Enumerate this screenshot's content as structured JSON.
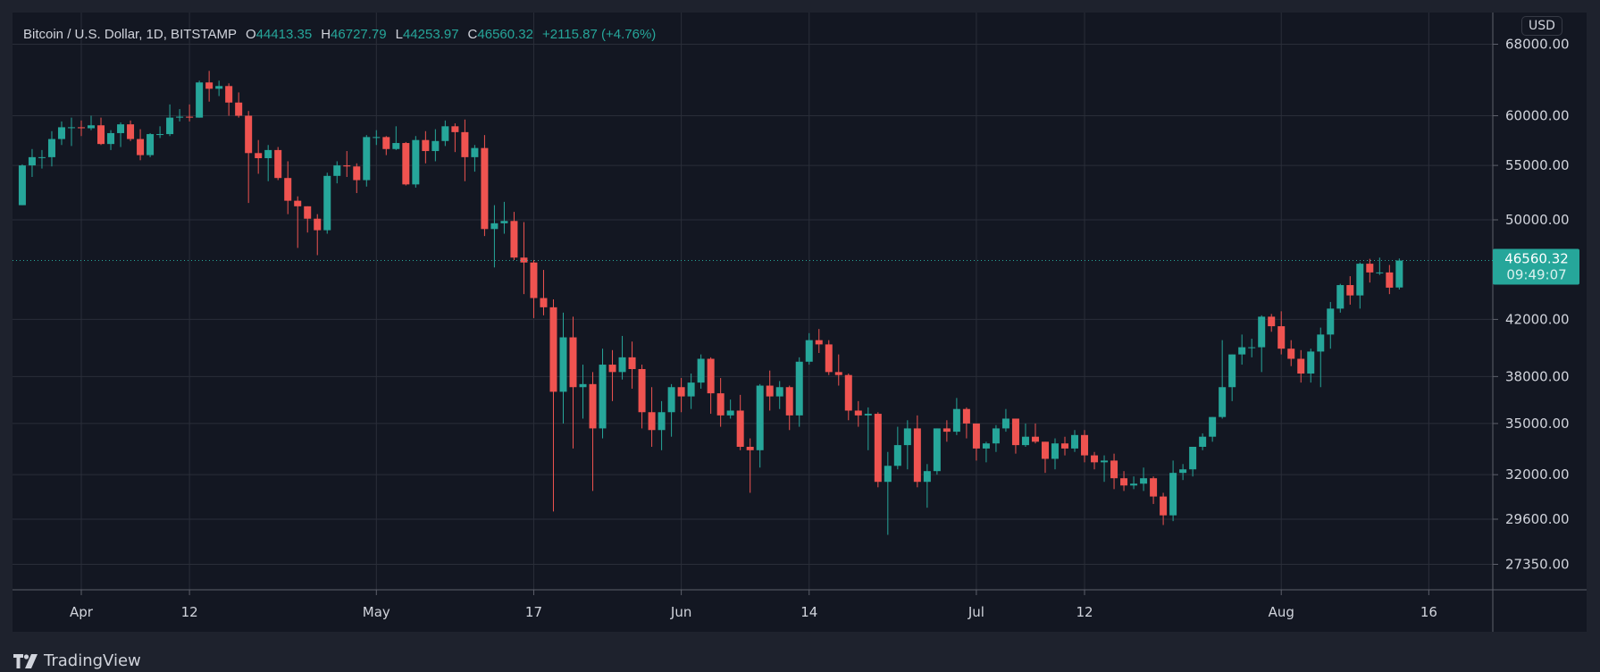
{
  "legend": {
    "symbol": "Bitcoin / U.S. Dollar, 1D, BITSTAMP",
    "open_label": "O",
    "open": "44413.35",
    "high_label": "H",
    "high": "46727.79",
    "low_label": "L",
    "low": "44253.97",
    "close_label": "C",
    "close": "46560.32",
    "change": "+2115.87 (+4.76%)"
  },
  "currency_badge": "USD",
  "last_price": {
    "price": "46560.32",
    "countdown": "09:49:07"
  },
  "branding": "TradingView",
  "colors": {
    "up": "#26a69a",
    "down": "#ef5350",
    "background": "#131722",
    "grid": "#2a2e39",
    "text": "#d1d4dc"
  },
  "chart_data": {
    "type": "candlestick",
    "scale": "log",
    "grid": true,
    "ylim": [
      26500,
      69500
    ],
    "y_ticks": [
      "68000.00",
      "60000.00",
      "55000.00",
      "50000.00",
      "42000.00",
      "38000.00",
      "35000.00",
      "32000.00",
      "29600.00",
      "27350.00"
    ],
    "x_ticks": [
      {
        "label": "Apr",
        "date": "2021-04-01"
      },
      {
        "label": "12",
        "date": "2021-04-12"
      },
      {
        "label": "May",
        "date": "2021-05-01"
      },
      {
        "label": "17",
        "date": "2021-05-17"
      },
      {
        "label": "Jun",
        "date": "2021-06-01"
      },
      {
        "label": "14",
        "date": "2021-06-14"
      },
      {
        "label": "Jul",
        "date": "2021-07-01"
      },
      {
        "label": "12",
        "date": "2021-07-12"
      },
      {
        "label": "Aug",
        "date": "2021-08-01"
      },
      {
        "label": "16",
        "date": "2021-08-16"
      }
    ],
    "columns": [
      "date",
      "open",
      "high",
      "low",
      "close"
    ],
    "candles": [
      [
        "2021-03-26",
        51300,
        55100,
        51300,
        55000
      ],
      [
        "2021-03-27",
        55000,
        56600,
        53900,
        55800
      ],
      [
        "2021-03-28",
        55800,
        56500,
        54700,
        55800
      ],
      [
        "2021-03-29",
        55800,
        58400,
        54900,
        57600
      ],
      [
        "2021-03-30",
        57600,
        59400,
        57000,
        58800
      ],
      [
        "2021-03-31",
        58800,
        59800,
        56900,
        58800
      ],
      [
        "2021-04-01",
        58800,
        59500,
        57900,
        58700
      ],
      [
        "2021-04-02",
        58700,
        60000,
        58500,
        59000
      ],
      [
        "2021-04-03",
        59000,
        59800,
        57000,
        57100
      ],
      [
        "2021-04-04",
        57100,
        58500,
        56500,
        58200
      ],
      [
        "2021-04-05",
        58200,
        59300,
        56800,
        59100
      ],
      [
        "2021-04-06",
        59100,
        59500,
        57400,
        57600
      ],
      [
        "2021-04-07",
        57600,
        58600,
        55500,
        56000
      ],
      [
        "2021-04-08",
        56000,
        58200,
        55800,
        58100
      ],
      [
        "2021-04-09",
        58100,
        58900,
        57700,
        58100
      ],
      [
        "2021-04-10",
        58100,
        61200,
        57900,
        59800
      ],
      [
        "2021-04-11",
        59800,
        60700,
        59400,
        59900
      ],
      [
        "2021-04-12",
        59900,
        61200,
        59400,
        59800
      ],
      [
        "2021-04-13",
        59800,
        63800,
        59800,
        63600
      ],
      [
        "2021-04-14",
        63600,
        64900,
        61500,
        62900
      ],
      [
        "2021-04-15",
        62900,
        63800,
        62100,
        63200
      ],
      [
        "2021-04-16",
        63200,
        63500,
        60000,
        61400
      ],
      [
        "2021-04-17",
        61400,
        62500,
        59800,
        60000
      ],
      [
        "2021-04-18",
        60000,
        60500,
        51500,
        56200
      ],
      [
        "2021-04-19",
        56200,
        57500,
        54200,
        55700
      ],
      [
        "2021-04-20",
        55700,
        57000,
        53500,
        56500
      ],
      [
        "2021-04-21",
        56500,
        56800,
        53600,
        53800
      ],
      [
        "2021-04-22",
        53800,
        55400,
        50500,
        51700
      ],
      [
        "2021-04-23",
        51700,
        52100,
        47600,
        51200
      ],
      [
        "2021-04-24",
        51200,
        51200,
        48900,
        50100
      ],
      [
        "2021-04-25",
        50100,
        50500,
        47000,
        49100
      ],
      [
        "2021-04-26",
        49100,
        54300,
        48800,
        54000
      ],
      [
        "2021-04-27",
        54000,
        55400,
        53300,
        55000
      ],
      [
        "2021-04-28",
        55000,
        56400,
        53900,
        54900
      ],
      [
        "2021-04-29",
        54900,
        55200,
        52400,
        53600
      ],
      [
        "2021-04-30",
        53600,
        58000,
        53000,
        57800
      ],
      [
        "2021-05-01",
        57800,
        58500,
        57000,
        57800
      ],
      [
        "2021-05-02",
        57800,
        57900,
        56000,
        56600
      ],
      [
        "2021-05-03",
        56600,
        58900,
        56500,
        57200
      ],
      [
        "2021-05-04",
        57200,
        57300,
        53100,
        53200
      ],
      [
        "2021-05-05",
        53200,
        57900,
        52900,
        57500
      ],
      [
        "2021-05-06",
        57500,
        58400,
        55200,
        56400
      ],
      [
        "2021-05-07",
        56400,
        58600,
        55400,
        57400
      ],
      [
        "2021-05-08",
        57400,
        59500,
        56900,
        58900
      ],
      [
        "2021-05-09",
        58900,
        59200,
        56300,
        58300
      ],
      [
        "2021-05-10",
        58300,
        59600,
        53500,
        55800
      ],
      [
        "2021-05-11",
        55800,
        57000,
        54400,
        56700
      ],
      [
        "2021-05-12",
        56700,
        58000,
        48600,
        49200
      ],
      [
        "2021-05-13",
        49200,
        51300,
        46000,
        49700
      ],
      [
        "2021-05-14",
        49700,
        51600,
        48800,
        49900
      ],
      [
        "2021-05-15",
        49900,
        50700,
        46600,
        46800
      ],
      [
        "2021-05-16",
        46800,
        49800,
        43900,
        46400
      ],
      [
        "2021-05-17",
        46400,
        46600,
        42100,
        43600
      ],
      [
        "2021-05-18",
        43600,
        45800,
        42300,
        42900
      ],
      [
        "2021-05-19",
        42900,
        43500,
        30000,
        37000
      ],
      [
        "2021-05-20",
        37000,
        42500,
        35000,
        40700
      ],
      [
        "2021-05-21",
        40700,
        42200,
        33500,
        37300
      ],
      [
        "2021-05-22",
        37300,
        38800,
        35300,
        37500
      ],
      [
        "2021-05-23",
        37500,
        38300,
        31100,
        34700
      ],
      [
        "2021-05-24",
        34700,
        39900,
        34100,
        38800
      ],
      [
        "2021-05-25",
        38800,
        39800,
        36400,
        38300
      ],
      [
        "2021-05-26",
        38300,
        40800,
        37800,
        39300
      ],
      [
        "2021-05-27",
        39300,
        40400,
        37200,
        38500
      ],
      [
        "2021-05-28",
        38500,
        38800,
        34700,
        35700
      ],
      [
        "2021-05-29",
        35700,
        37300,
        33600,
        34600
      ],
      [
        "2021-05-30",
        34600,
        36400,
        33400,
        35700
      ],
      [
        "2021-05-31",
        35700,
        37500,
        34200,
        37300
      ],
      [
        "2021-06-01",
        37300,
        37900,
        35700,
        36700
      ],
      [
        "2021-06-02",
        36700,
        38200,
        35900,
        37600
      ],
      [
        "2021-06-03",
        37600,
        39500,
        37200,
        39200
      ],
      [
        "2021-06-04",
        39200,
        39300,
        35600,
        36900
      ],
      [
        "2021-06-05",
        36900,
        37900,
        34800,
        35500
      ],
      [
        "2021-06-06",
        35500,
        36500,
        35300,
        35800
      ],
      [
        "2021-06-07",
        35800,
        36800,
        33400,
        33600
      ],
      [
        "2021-06-08",
        33600,
        34100,
        31000,
        33400
      ],
      [
        "2021-06-09",
        33400,
        37500,
        32400,
        37400
      ],
      [
        "2021-06-10",
        37400,
        38400,
        35800,
        36700
      ],
      [
        "2021-06-11",
        36700,
        37700,
        35900,
        37300
      ],
      [
        "2021-06-12",
        37300,
        37400,
        34600,
        35500
      ],
      [
        "2021-06-13",
        35500,
        39300,
        34800,
        39000
      ],
      [
        "2021-06-14",
        39000,
        41000,
        38800,
        40500
      ],
      [
        "2021-06-15",
        40500,
        41300,
        39600,
        40200
      ],
      [
        "2021-06-16",
        40200,
        40500,
        38100,
        38300
      ],
      [
        "2021-06-17",
        38300,
        39500,
        37400,
        38100
      ],
      [
        "2021-06-18",
        38100,
        38200,
        35200,
        35800
      ],
      [
        "2021-06-19",
        35800,
        36400,
        34800,
        35500
      ],
      [
        "2021-06-20",
        35500,
        36000,
        33400,
        35600
      ],
      [
        "2021-06-21",
        35600,
        35700,
        31300,
        31600
      ],
      [
        "2021-06-22",
        31600,
        33300,
        28800,
        32500
      ],
      [
        "2021-06-23",
        32500,
        34800,
        32300,
        33700
      ],
      [
        "2021-06-24",
        33700,
        35200,
        32300,
        34700
      ],
      [
        "2021-06-25",
        34700,
        35500,
        31300,
        31600
      ],
      [
        "2021-06-26",
        31600,
        32600,
        30200,
        32200
      ],
      [
        "2021-06-27",
        32200,
        34700,
        32000,
        34700
      ],
      [
        "2021-06-28",
        34700,
        35200,
        33900,
        34500
      ],
      [
        "2021-06-29",
        34500,
        36600,
        34300,
        35900
      ],
      [
        "2021-06-30",
        35900,
        36000,
        34100,
        35000
      ],
      [
        "2021-07-01",
        35000,
        35000,
        32800,
        33500
      ],
      [
        "2021-07-02",
        33500,
        33900,
        32700,
        33800
      ],
      [
        "2021-07-03",
        33800,
        34900,
        33300,
        34700
      ],
      [
        "2021-07-04",
        34700,
        35900,
        34500,
        35300
      ],
      [
        "2021-07-05",
        35300,
        35300,
        33200,
        33700
      ],
      [
        "2021-07-06",
        33700,
        35000,
        33600,
        34200
      ],
      [
        "2021-07-07",
        34200,
        35000,
        33800,
        33900
      ],
      [
        "2021-07-08",
        33900,
        33900,
        32100,
        32900
      ],
      [
        "2021-07-09",
        32900,
        34100,
        32300,
        33800
      ],
      [
        "2021-07-10",
        33800,
        34200,
        33100,
        33500
      ],
      [
        "2021-07-11",
        33500,
        34600,
        33300,
        34300
      ],
      [
        "2021-07-12",
        34300,
        34600,
        32700,
        33100
      ],
      [
        "2021-07-13",
        33100,
        33300,
        32300,
        32700
      ],
      [
        "2021-07-14",
        32700,
        33100,
        31600,
        32800
      ],
      [
        "2021-07-15",
        32800,
        33200,
        31200,
        31800
      ],
      [
        "2021-07-16",
        31800,
        32200,
        31100,
        31400
      ],
      [
        "2021-07-17",
        31400,
        31900,
        31200,
        31500
      ],
      [
        "2021-07-18",
        31500,
        32400,
        31100,
        31800
      ],
      [
        "2021-07-19",
        31800,
        31900,
        30400,
        30800
      ],
      [
        "2021-07-20",
        30800,
        31000,
        29300,
        29800
      ],
      [
        "2021-07-21",
        29800,
        32800,
        29500,
        32100
      ],
      [
        "2021-07-22",
        32100,
        32600,
        31700,
        32300
      ],
      [
        "2021-07-23",
        32300,
        33600,
        31900,
        33600
      ],
      [
        "2021-07-24",
        33600,
        34400,
        33400,
        34200
      ],
      [
        "2021-07-25",
        34200,
        35400,
        33900,
        35400
      ],
      [
        "2021-07-26",
        35400,
        40500,
        35300,
        37300
      ],
      [
        "2021-07-27",
        37300,
        39500,
        36400,
        39500
      ],
      [
        "2021-07-28",
        39500,
        40900,
        38800,
        40000
      ],
      [
        "2021-07-29",
        40000,
        40600,
        39300,
        40000
      ],
      [
        "2021-07-30",
        40000,
        42300,
        38300,
        42200
      ],
      [
        "2021-07-31",
        42200,
        42400,
        41100,
        41500
      ],
      [
        "2021-08-01",
        41500,
        42600,
        39500,
        39900
      ],
      [
        "2021-08-02",
        39900,
        40500,
        38700,
        39200
      ],
      [
        "2021-08-03",
        39200,
        39800,
        37600,
        38200
      ],
      [
        "2021-08-04",
        38200,
        39900,
        37600,
        39700
      ],
      [
        "2021-08-05",
        39700,
        41400,
        37300,
        40900
      ],
      [
        "2021-08-06",
        40900,
        43300,
        39900,
        42800
      ],
      [
        "2021-08-07",
        42800,
        44700,
        42500,
        44600
      ],
      [
        "2021-08-08",
        44600,
        45300,
        43100,
        43800
      ],
      [
        "2021-08-09",
        43800,
        46400,
        42800,
        46300
      ],
      [
        "2021-08-10",
        46300,
        46700,
        44800,
        45600
      ],
      [
        "2021-08-11",
        45600,
        46800,
        45400,
        45600
      ],
      [
        "2021-08-12",
        45600,
        46200,
        43900,
        44400
      ],
      [
        "2021-08-13",
        44413.35,
        46727.79,
        44253.97,
        46560.32
      ]
    ]
  }
}
